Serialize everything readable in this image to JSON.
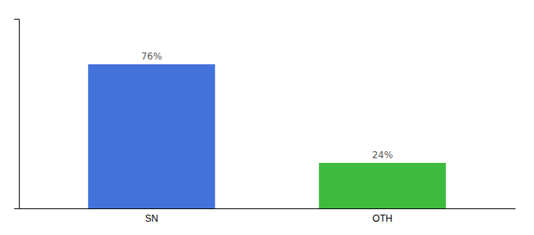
{
  "chart_data": {
    "type": "bar",
    "categories": [
      "SN",
      "OTH"
    ],
    "values": [
      76,
      24
    ],
    "value_labels": [
      "76%",
      "24%"
    ],
    "colors": [
      "#4472db",
      "#3dbb3d"
    ],
    "ylim": [
      0,
      100
    ],
    "data_labels": true,
    "tick_labels": "x",
    "grid": false
  }
}
